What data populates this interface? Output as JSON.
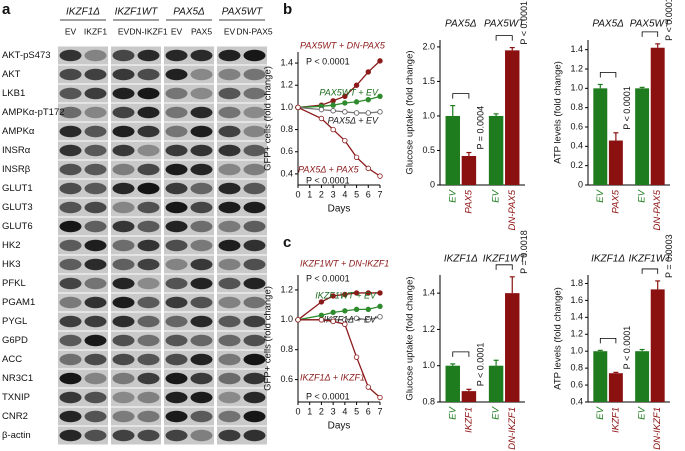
{
  "panel_labels": [
    "a",
    "b",
    "c"
  ],
  "blot": {
    "groups": [
      {
        "label": "IKZF1Δ",
        "lanes": [
          "EV",
          "IKZF1"
        ]
      },
      {
        "label": "IKZF1WT",
        "lanes": [
          "EV",
          "DN-IKZF1"
        ]
      },
      {
        "label": "PAX5Δ",
        "lanes": [
          "EV",
          "PAX5"
        ]
      },
      {
        "label": "PAX5WT",
        "lanes": [
          "EV",
          "DN-PAX5"
        ]
      }
    ],
    "row_labels": [
      "AKT-pS473",
      "AKT",
      "LKB1",
      "AMPKα-pT172",
      "AMPKα",
      "INSRα",
      "INSRβ",
      "GLUT1",
      "GLUT3",
      "GLUT6",
      "HK2",
      "HK3",
      "PFKL",
      "PGAM1",
      "PYGL",
      "G6PD",
      "ACC",
      "NR3C1",
      "TXNIP",
      "CNR2",
      "β-actin"
    ]
  },
  "chart_data": [
    {
      "type": "line",
      "x_label": "Days",
      "y_label": "GFP+ cells (fold change)",
      "x": [
        0,
        2,
        3,
        4,
        5,
        6,
        7
      ],
      "xlim": [
        0,
        7
      ],
      "xticks": [
        0,
        1,
        2,
        3,
        4,
        5,
        6,
        7
      ],
      "ylim": [
        0.3,
        1.5
      ],
      "yticks": [
        0.4,
        0.6,
        0.8,
        {
          "value": 1.0,
          "label": "1.0"
        },
        1.2,
        1.4
      ],
      "series": [
        {
          "name": "PAX5WT + DN-PAX5",
          "color": "#8b1a1a",
          "marker": "filled",
          "values": [
            1.0,
            1.02,
            1.06,
            1.1,
            1.2,
            1.32,
            1.42
          ]
        },
        {
          "name": "PAX5WT + EV",
          "color": "#2e8b2e",
          "marker": "filled",
          "values": [
            1.0,
            1.01,
            1.02,
            1.04,
            1.05,
            1.07,
            1.1
          ]
        },
        {
          "name": "PAX5Δ + EV",
          "color": "#777777",
          "marker": "open",
          "values": [
            1.0,
            0.98,
            0.97,
            0.96,
            0.95,
            0.95,
            0.96
          ]
        },
        {
          "name": "PAX5Δ + PAX5",
          "color": "#8b1a1a",
          "marker": "open",
          "values": [
            1.0,
            0.9,
            0.8,
            0.7,
            0.55,
            0.45,
            0.38
          ]
        }
      ],
      "annotations": [
        "P < 0.0001",
        "P < 0.0001"
      ]
    },
    {
      "type": "bar",
      "y_label": "Glucose uptake (fold change)",
      "group_titles": [
        "PAX5Δ",
        "PAX5WT"
      ],
      "categories": [
        "EV",
        "PAX5",
        "EV",
        "DN-PAX5"
      ],
      "values": [
        1.0,
        0.42,
        1.0,
        1.95
      ],
      "errors": [
        0.15,
        0.05,
        0.03,
        0.04
      ],
      "colors": [
        "#1e7b1e",
        "#8b1010",
        "#1e7b1e",
        "#8b1010"
      ],
      "ylim": [
        0,
        2.1
      ],
      "yticks": [
        0,
        0.5,
        {
          "value": 1.0,
          "label": "1.0"
        },
        1.5,
        {
          "value": 2.0,
          "label": "2.0"
        }
      ],
      "annotations": [
        "P = 0.0004",
        "P < 0.0001"
      ]
    },
    {
      "type": "bar",
      "y_label": "ATP levels (fold change)",
      "group_titles": [
        "PAX5Δ",
        "PAX5WT"
      ],
      "categories": [
        "EV",
        "PAX5",
        "EV",
        "DN-PAX5"
      ],
      "values": [
        1.0,
        0.46,
        1.0,
        1.42
      ],
      "errors": [
        0.04,
        0.08,
        0.01,
        0.04
      ],
      "colors": [
        "#1e7b1e",
        "#8b1010",
        "#1e7b1e",
        "#8b1010"
      ],
      "ylim": [
        0,
        1.5
      ],
      "yticks": [
        0,
        0.2,
        0.4,
        0.6,
        0.8,
        {
          "value": 1.0,
          "label": "1.0"
        },
        1.2,
        1.4
      ],
      "annotations": [
        "P < 0.0001",
        "P < 0.0001"
      ]
    },
    {
      "type": "line",
      "x_label": "Days",
      "y_label": "GFP+ cells (fold change)",
      "x": [
        0,
        2,
        3,
        4,
        5,
        6,
        7
      ],
      "xlim": [
        0,
        7
      ],
      "xticks": [
        0,
        1,
        2,
        3,
        4,
        5,
        6,
        7
      ],
      "ylim": [
        0.45,
        1.3
      ],
      "yticks": [
        0.6,
        0.8,
        {
          "value": 1.0,
          "label": "1.0"
        },
        1.2
      ],
      "series": [
        {
          "name": "IKZF1WT + DN-IKZF1",
          "color": "#8b1a1a",
          "marker": "filled",
          "values": [
            1.0,
            1.12,
            1.16,
            1.17,
            1.18,
            1.18,
            1.18
          ]
        },
        {
          "name": "IKZF1WT + EV",
          "color": "#2e8b2e",
          "marker": "filled",
          "values": [
            1.0,
            1.03,
            1.05,
            1.06,
            1.07,
            1.07,
            1.09
          ]
        },
        {
          "name": "IKZF1Δ + EV",
          "color": "#777777",
          "marker": "open",
          "values": [
            1.0,
            1.0,
            1.0,
            1.0,
            1.01,
            1.0,
            1.02
          ]
        },
        {
          "name": "IKZF1Δ + IKZF1",
          "color": "#8b1a1a",
          "marker": "open",
          "values": [
            1.0,
            1.0,
            0.99,
            0.97,
            0.75,
            0.55,
            0.48
          ]
        }
      ],
      "annotations": [
        "P < 0.0001",
        "P < 0.0001"
      ]
    },
    {
      "type": "bar",
      "y_label": "Glucose uptake (fold change)",
      "group_titles": [
        "IKZF1Δ",
        "IKZF1WT"
      ],
      "categories": [
        "EV",
        "IKZF1",
        "EV",
        "DN-IKZF1"
      ],
      "values": [
        1.0,
        0.86,
        1.0,
        1.4
      ],
      "errors": [
        0.01,
        0.01,
        0.03,
        0.09
      ],
      "colors": [
        "#1e7b1e",
        "#8b1010",
        "#1e7b1e",
        "#8b1010"
      ],
      "ylim": [
        0.8,
        1.5
      ],
      "yticks": [
        0.8,
        {
          "value": 1.0,
          "label": "1.0"
        },
        1.2,
        1.4
      ],
      "annotations": [
        "P < 0.0001",
        "P = 0.0018"
      ]
    },
    {
      "type": "bar",
      "y_label": "ATP levels (fold change)",
      "group_titles": [
        "IKZF1Δ",
        "IKZF1WT"
      ],
      "categories": [
        "EV",
        "IKZF1",
        "EV",
        "DN-IKZF1"
      ],
      "values": [
        1.0,
        0.74,
        1.0,
        1.73
      ],
      "errors": [
        0.01,
        0.01,
        0.02,
        0.1
      ],
      "colors": [
        "#1e7b1e",
        "#8b1010",
        "#1e7b1e",
        "#8b1010"
      ],
      "ylim": [
        0.4,
        1.9
      ],
      "yticks": [
        0.4,
        0.6,
        0.8,
        {
          "value": 1.0,
          "label": "1.0"
        },
        1.2,
        1.4,
        1.6,
        1.8
      ],
      "annotations": [
        "P < 0.0001",
        "P = 0.0003"
      ]
    }
  ]
}
